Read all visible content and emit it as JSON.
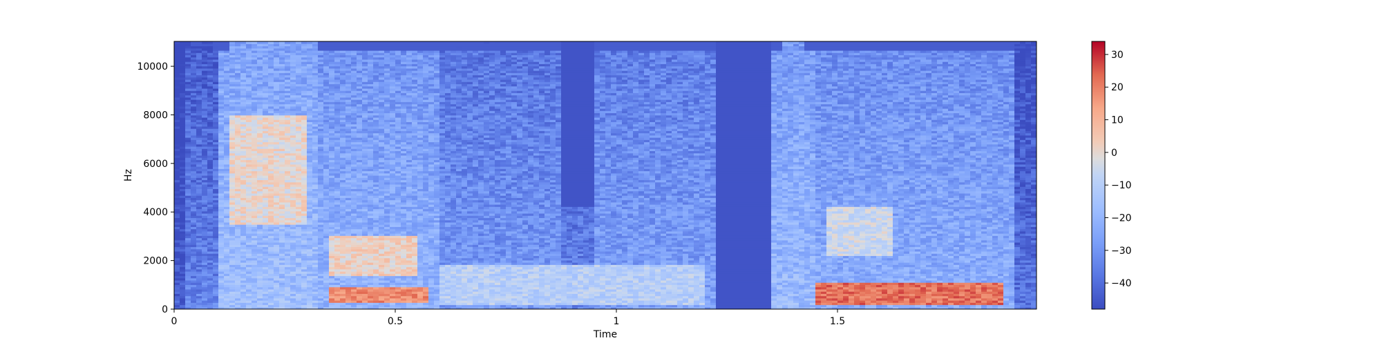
{
  "chart_data": {
    "type": "heatmap",
    "title": "",
    "xlabel": "Time",
    "ylabel": "Hz",
    "xlim": [
      0,
      1.95
    ],
    "ylim": [
      0,
      11025
    ],
    "x_ticks": [
      {
        "value": 0,
        "label": "0"
      },
      {
        "value": 0.5,
        "label": "0.5"
      },
      {
        "value": 1,
        "label": "1"
      },
      {
        "value": 1.5,
        "label": "1.5"
      }
    ],
    "y_ticks": [
      {
        "value": 0,
        "label": "0"
      },
      {
        "value": 2000,
        "label": "2000"
      },
      {
        "value": 4000,
        "label": "4000"
      },
      {
        "value": 6000,
        "label": "6000"
      },
      {
        "value": 8000,
        "label": "8000"
      },
      {
        "value": 10000,
        "label": "10000"
      }
    ],
    "colorbar": {
      "colormap": "coolwarm",
      "range": [
        -48,
        34
      ],
      "ticks": [
        {
          "value": 30,
          "label": "30"
        },
        {
          "value": 20,
          "label": "20"
        },
        {
          "value": 10,
          "label": "10"
        },
        {
          "value": 0,
          "label": "0"
        },
        {
          "value": -10,
          "label": "−10"
        },
        {
          "value": -20,
          "label": "−20"
        },
        {
          "value": -30,
          "label": "−30"
        },
        {
          "value": -40,
          "label": "−40"
        }
      ]
    },
    "grid": false,
    "loud_regions": [
      {
        "t": [
          0.12,
          0.3
        ],
        "hz": [
          3500,
          8000
        ],
        "db": 0
      },
      {
        "t": [
          0.35,
          0.55
        ],
        "hz": [
          1400,
          3000
        ],
        "db": 2
      },
      {
        "t": [
          0.35,
          0.58
        ],
        "hz": [
          300,
          900
        ],
        "db": 18
      },
      {
        "t": [
          0.6,
          1.2
        ],
        "hz": [
          200,
          1800
        ],
        "db": -10
      },
      {
        "t": [
          1.45,
          1.88
        ],
        "hz": [
          200,
          1100
        ],
        "db": 22
      },
      {
        "t": [
          1.48,
          1.62
        ],
        "hz": [
          2200,
          4200
        ],
        "db": -5
      }
    ],
    "silent_regions": [
      {
        "t": [
          1.22,
          1.35
        ],
        "hz": [
          0,
          11025
        ]
      },
      {
        "t": [
          0.88,
          0.95
        ],
        "hz": [
          4200,
          11025
        ]
      }
    ]
  }
}
